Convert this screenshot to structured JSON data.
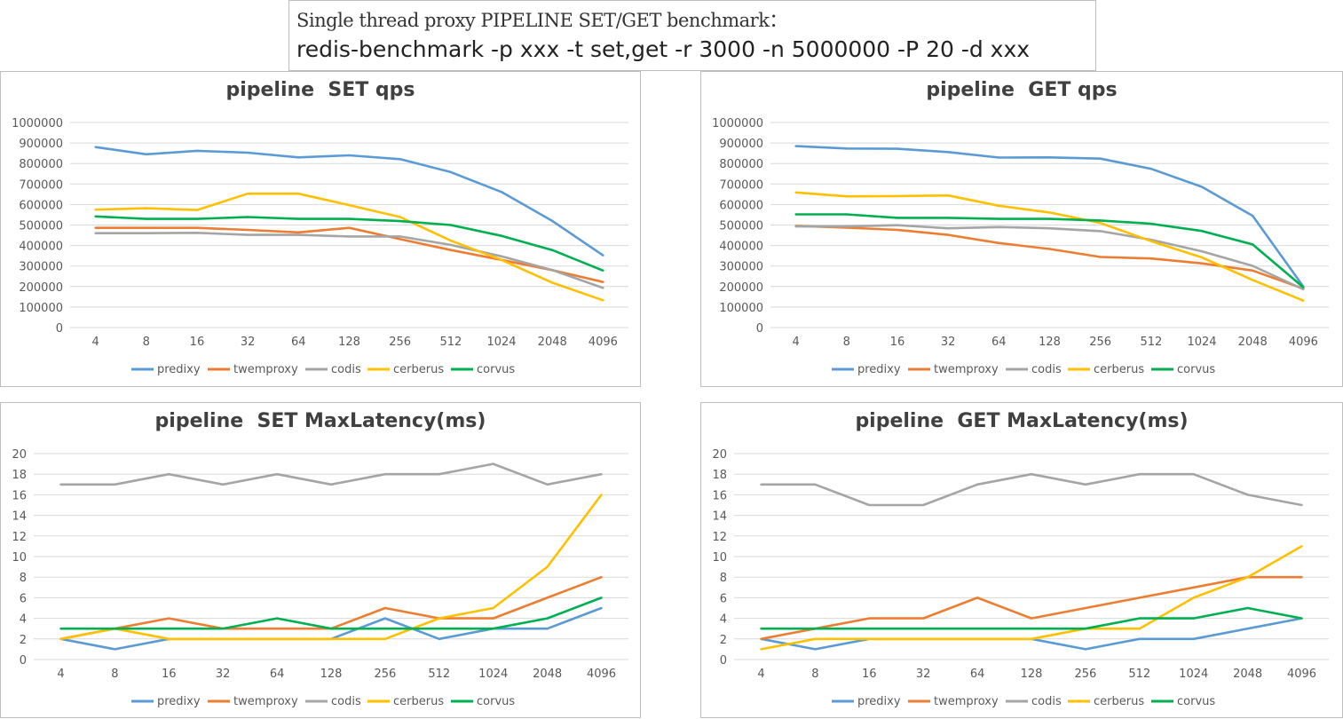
{
  "header": {
    "line1": "Single thread proxy PIPELINE SET/GET benchmark：",
    "line2": "redis-benchmark -p xxx -t set,get -r 3000 -n 5000000 -P 20 -d xxx"
  },
  "colors": {
    "predixy": "#5b9bd5",
    "twemproxy": "#ed7d31",
    "codis": "#a5a5a5",
    "cerberus": "#ffc000",
    "corvus": "#00b050"
  },
  "chart_data": [
    {
      "type": "line",
      "title": "pipeline  SET qps",
      "categories": [
        "4",
        "8",
        "16",
        "32",
        "64",
        "128",
        "256",
        "512",
        "1024",
        "2048",
        "4096"
      ],
      "ylim": [
        0,
        1000000
      ],
      "yticks": [
        "0",
        "100000",
        "200000",
        "300000",
        "400000",
        "500000",
        "600000",
        "700000",
        "800000",
        "900000",
        "1000000"
      ],
      "grid": true,
      "legend": "bottom",
      "series": [
        {
          "name": "predixy",
          "values": [
            880000,
            845000,
            862000,
            853000,
            830000,
            840000,
            821000,
            758000,
            661000,
            520000,
            352000
          ]
        },
        {
          "name": "twemproxy",
          "values": [
            486000,
            486000,
            486000,
            476000,
            464000,
            486000,
            431000,
            378000,
            330000,
            280000,
            222000
          ]
        },
        {
          "name": "codis",
          "values": [
            460000,
            460000,
            462000,
            452000,
            452000,
            444000,
            444000,
            403000,
            347000,
            280000,
            193000
          ]
        },
        {
          "name": "cerberus",
          "values": [
            575000,
            582000,
            573000,
            653000,
            653000,
            597000,
            539000,
            424000,
            330000,
            219000,
            133000
          ]
        },
        {
          "name": "corvus",
          "values": [
            542000,
            530000,
            530000,
            539000,
            530000,
            530000,
            519000,
            500000,
            447000,
            378000,
            278000
          ]
        }
      ]
    },
    {
      "type": "line",
      "title": "pipeline  GET qps",
      "categories": [
        "4",
        "8",
        "16",
        "32",
        "64",
        "128",
        "256",
        "512",
        "1024",
        "2048",
        "4096"
      ],
      "ylim": [
        0,
        1000000
      ],
      "yticks": [
        "0",
        "100000",
        "200000",
        "300000",
        "400000",
        "500000",
        "600000",
        "700000",
        "800000",
        "900000",
        "1000000"
      ],
      "grid": true,
      "legend": "bottom",
      "series": [
        {
          "name": "predixy",
          "values": [
            885000,
            873000,
            872000,
            856000,
            829000,
            830000,
            824000,
            774000,
            686000,
            545000,
            199000
          ]
        },
        {
          "name": "twemproxy",
          "values": [
            496000,
            487000,
            476000,
            452000,
            412000,
            383000,
            344000,
            337000,
            313000,
            278000,
            190000
          ]
        },
        {
          "name": "codis",
          "values": [
            493000,
            493000,
            499000,
            484000,
            490000,
            484000,
            470000,
            428000,
            372000,
            301000,
            186000
          ]
        },
        {
          "name": "cerberus",
          "values": [
            659000,
            640000,
            641000,
            644000,
            594000,
            561000,
            510000,
            421000,
            342000,
            232000,
            131000
          ]
        },
        {
          "name": "corvus",
          "values": [
            552000,
            552000,
            535000,
            535000,
            530000,
            530000,
            522000,
            506000,
            471000,
            405000,
            196000
          ]
        }
      ]
    },
    {
      "type": "line",
      "title": "pipeline  SET MaxLatency(ms)",
      "categories": [
        "4",
        "8",
        "16",
        "32",
        "64",
        "128",
        "256",
        "512",
        "1024",
        "2048",
        "4096"
      ],
      "ylim": [
        0,
        20
      ],
      "yticks": [
        "0",
        "2",
        "4",
        "6",
        "8",
        "10",
        "12",
        "14",
        "16",
        "18",
        "20"
      ],
      "grid": true,
      "legend": "bottom",
      "series": [
        {
          "name": "predixy",
          "values": [
            2,
            1,
            2,
            2,
            2,
            2,
            4,
            2,
            3,
            3,
            5
          ]
        },
        {
          "name": "twemproxy",
          "values": [
            2,
            3,
            4,
            3,
            3,
            3,
            5,
            4,
            4,
            6,
            8
          ]
        },
        {
          "name": "codis",
          "values": [
            17,
            17,
            18,
            17,
            18,
            17,
            18,
            18,
            19,
            17,
            18
          ]
        },
        {
          "name": "cerberus",
          "values": [
            2,
            3,
            2,
            2,
            2,
            2,
            2,
            4,
            5,
            9,
            16
          ]
        },
        {
          "name": "corvus",
          "values": [
            3,
            3,
            3,
            3,
            4,
            3,
            3,
            3,
            3,
            4,
            6
          ]
        }
      ]
    },
    {
      "type": "line",
      "title": "pipeline  GET MaxLatency(ms)",
      "categories": [
        "4",
        "8",
        "16",
        "32",
        "64",
        "128",
        "256",
        "512",
        "1024",
        "2048",
        "4096"
      ],
      "ylim": [
        0,
        20
      ],
      "yticks": [
        "0",
        "2",
        "4",
        "6",
        "8",
        "10",
        "12",
        "14",
        "16",
        "18",
        "20"
      ],
      "grid": true,
      "legend": "bottom",
      "series": [
        {
          "name": "predixy",
          "values": [
            2,
            1,
            2,
            2,
            2,
            2,
            1,
            2,
            2,
            3,
            4
          ]
        },
        {
          "name": "twemproxy",
          "values": [
            2,
            3,
            4,
            4,
            6,
            4,
            5,
            6,
            7,
            8,
            8
          ]
        },
        {
          "name": "codis",
          "values": [
            17,
            17,
            15,
            15,
            17,
            18,
            17,
            18,
            18,
            16,
            15
          ]
        },
        {
          "name": "cerberus",
          "values": [
            1,
            2,
            2,
            2,
            2,
            2,
            3,
            3,
            6,
            8,
            11
          ]
        },
        {
          "name": "corvus",
          "values": [
            3,
            3,
            3,
            3,
            3,
            3,
            3,
            4,
            4,
            5,
            4
          ]
        }
      ]
    }
  ]
}
